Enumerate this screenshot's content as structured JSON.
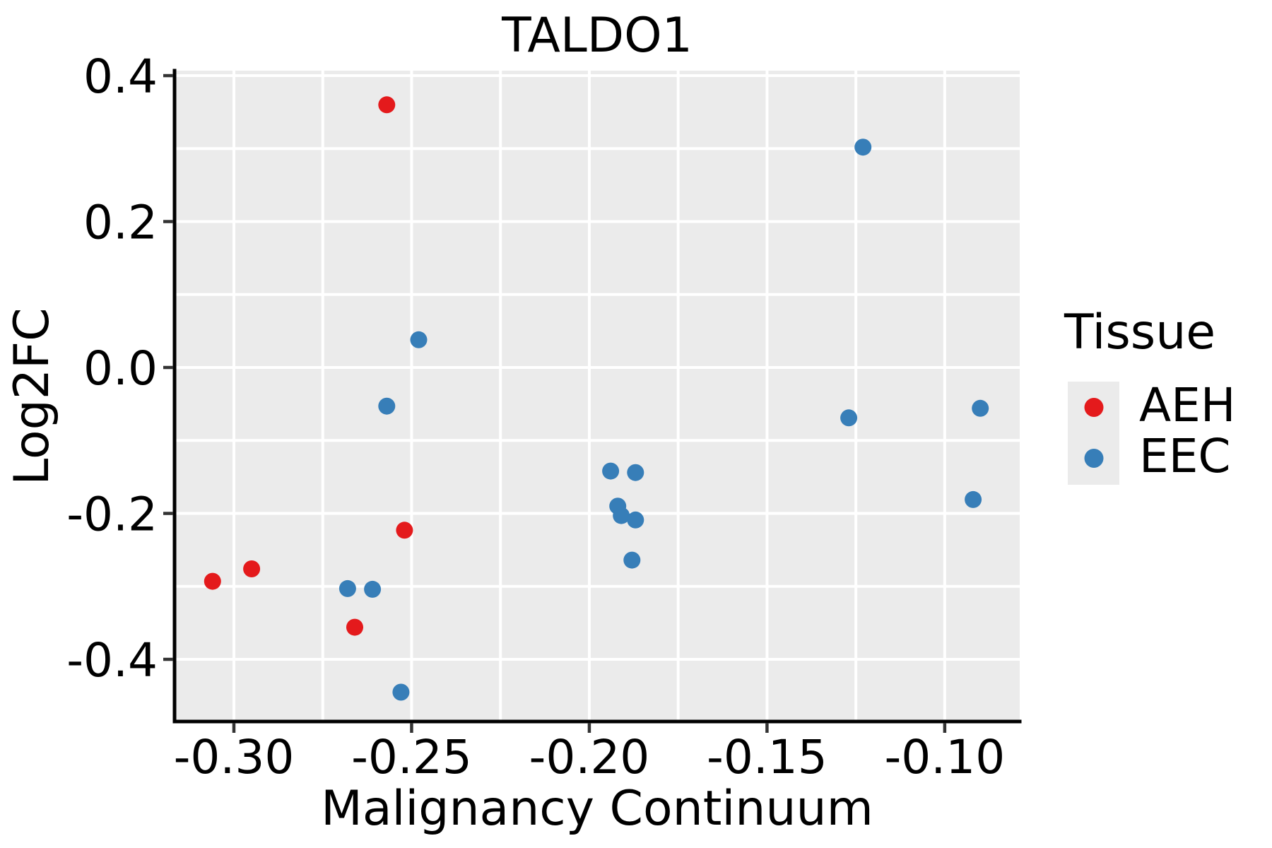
{
  "figure": {
    "title": "TALDO1",
    "x_label": "Malignancy Continuum",
    "y_label": "Log2FC"
  },
  "legend": {
    "title": "Tissue",
    "items": [
      {
        "label": "AEH",
        "color": "#E41A1C"
      },
      {
        "label": "EEC",
        "color": "#377EB8"
      }
    ]
  },
  "chart_data": {
    "type": "scatter",
    "title": "TALDO1",
    "xlabel": "Malignancy Continuum",
    "ylabel": "Log2FC",
    "xlim": [
      -0.3167,
      -0.0789
    ],
    "ylim": [
      -0.4852,
      0.4068
    ],
    "x_ticks": {
      "values": [
        -0.3,
        -0.25,
        -0.2,
        -0.15,
        -0.1
      ],
      "labels": [
        "-0.30",
        "-0.25",
        "-0.20",
        "-0.15",
        "-0.10"
      ]
    },
    "y_ticks": {
      "values": [
        0.4,
        0.2,
        0.0,
        -0.2,
        -0.4
      ],
      "labels": [
        "0.4",
        "0.2",
        "0.0",
        "-0.2",
        "-0.4"
      ]
    },
    "x_grid_step": 0.025,
    "y_grid_step": 0.1,
    "grid": true,
    "legend_title": "Tissue",
    "legend_position": "right",
    "panel_bg": "#EBEBEB",
    "grid_color": "#FFFFFF",
    "spine_color": "#000000",
    "tick_color": "#333333",
    "point_radius": 12,
    "series": [
      {
        "name": "AEH",
        "color": "#E41A1C",
        "points": [
          [
            -0.257,
            0.36
          ],
          [
            -0.252,
            -0.223
          ],
          [
            -0.295,
            -0.276
          ],
          [
            -0.306,
            -0.293
          ],
          [
            -0.266,
            -0.356
          ]
        ]
      },
      {
        "name": "EEC",
        "color": "#377EB8",
        "points": [
          [
            -0.248,
            0.038
          ],
          [
            -0.257,
            -0.053
          ],
          [
            -0.268,
            -0.303
          ],
          [
            -0.261,
            -0.304
          ],
          [
            -0.253,
            -0.445
          ],
          [
            -0.194,
            -0.142
          ],
          [
            -0.187,
            -0.144
          ],
          [
            -0.192,
            -0.19
          ],
          [
            -0.191,
            -0.203
          ],
          [
            -0.187,
            -0.209
          ],
          [
            -0.188,
            -0.264
          ],
          [
            -0.123,
            0.302
          ],
          [
            -0.127,
            -0.069
          ],
          [
            -0.09,
            -0.056
          ],
          [
            -0.092,
            -0.181
          ]
        ]
      }
    ]
  }
}
